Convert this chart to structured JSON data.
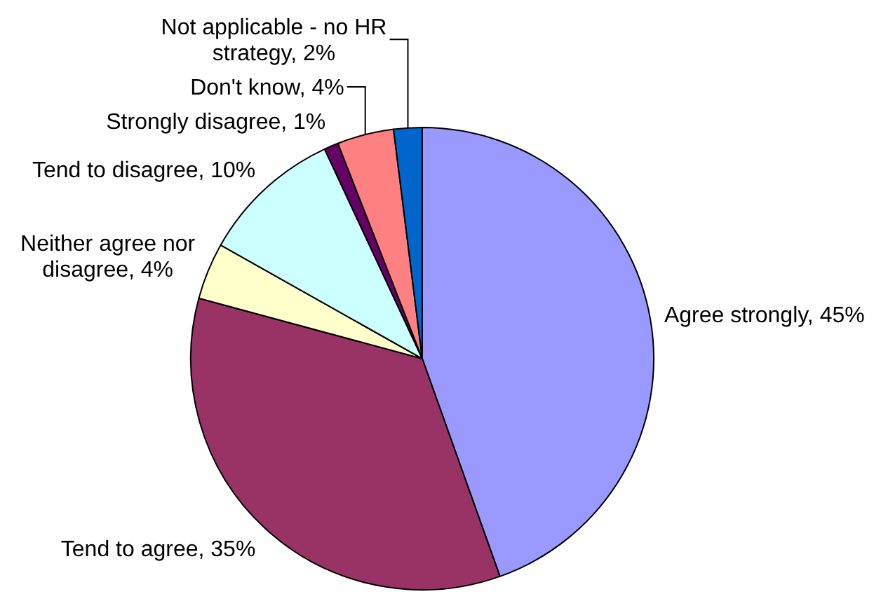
{
  "chart_data": {
    "type": "pie",
    "categories": [
      "Agree strongly",
      "Tend to agree",
      "Neither agree nor disagree",
      "Tend to disagree",
      "Strongly disagree",
      "Don't know",
      "Not applicable - no HR strategy"
    ],
    "values": [
      45,
      35,
      4,
      10,
      1,
      4,
      2
    ],
    "value_labels": [
      "45%",
      "35%",
      "4%",
      "10%",
      "1%",
      "4%",
      "2%"
    ],
    "colors": [
      "#9999ff",
      "#993366",
      "#ffffcc",
      "#ccffff",
      "#660066",
      "#ff8080",
      "#0066cc"
    ]
  }
}
